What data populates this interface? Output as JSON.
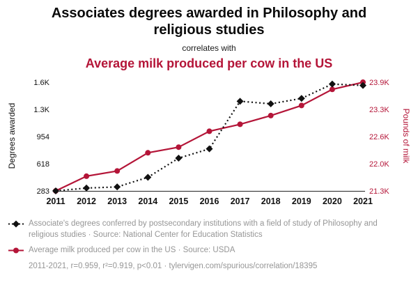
{
  "header": {
    "title": "Associates degrees awarded in Philosophy and religious studies",
    "correlates_with": "correlates with",
    "secondary_title": "Average milk produced per cow in the US"
  },
  "colors": {
    "series_red": "#b41538",
    "series_black": "#111111",
    "legend_gray": "#969696"
  },
  "chart_data": {
    "type": "line",
    "x": [
      2011,
      2012,
      2013,
      2014,
      2015,
      2016,
      2017,
      2018,
      2019,
      2020,
      2021
    ],
    "series": [
      {
        "name": "Associates degrees awarded in Philosophy and religious studies",
        "axis": "left",
        "color": "#111111",
        "style": "dashed",
        "marker": "diamond",
        "values": [
          283,
          318,
          332,
          451,
          687,
          802,
          1390,
          1358,
          1425,
          1602,
          1585
        ]
      },
      {
        "name": "Average milk produced per cow in the US",
        "axis": "right",
        "color": "#b41538",
        "style": "solid",
        "marker": "circle",
        "values": [
          21345,
          21697,
          21822,
          22258,
          22393,
          22774,
          22941,
          23149,
          23391,
          23777,
          23948
        ]
      }
    ],
    "left_axis": {
      "title": "Degrees awarded",
      "tick_labels": [
        "283",
        "618",
        "954",
        "1.3K",
        "1.6K"
      ],
      "min": 283,
      "max": 1625
    },
    "right_axis": {
      "title": "Pounds of milk",
      "tick_labels": [
        "21.3K",
        "22.0K",
        "22.6K",
        "23.3K",
        "23.9K"
      ],
      "min": 21345,
      "max": 23949
    },
    "grid": false,
    "legend_position": "bottom"
  },
  "legend": {
    "degrees": "Associate's degrees conferred by postsecondary institutions with a field of study of Philosophy and religious studies · Source: National Center for Education Statistics",
    "milk": "Average milk produced per cow in the US · Source: USDA",
    "stats": "2011-2021, r=0.959, r²=0.919, p<0.01 · tylervigen.com/spurious/correlation/18395"
  }
}
